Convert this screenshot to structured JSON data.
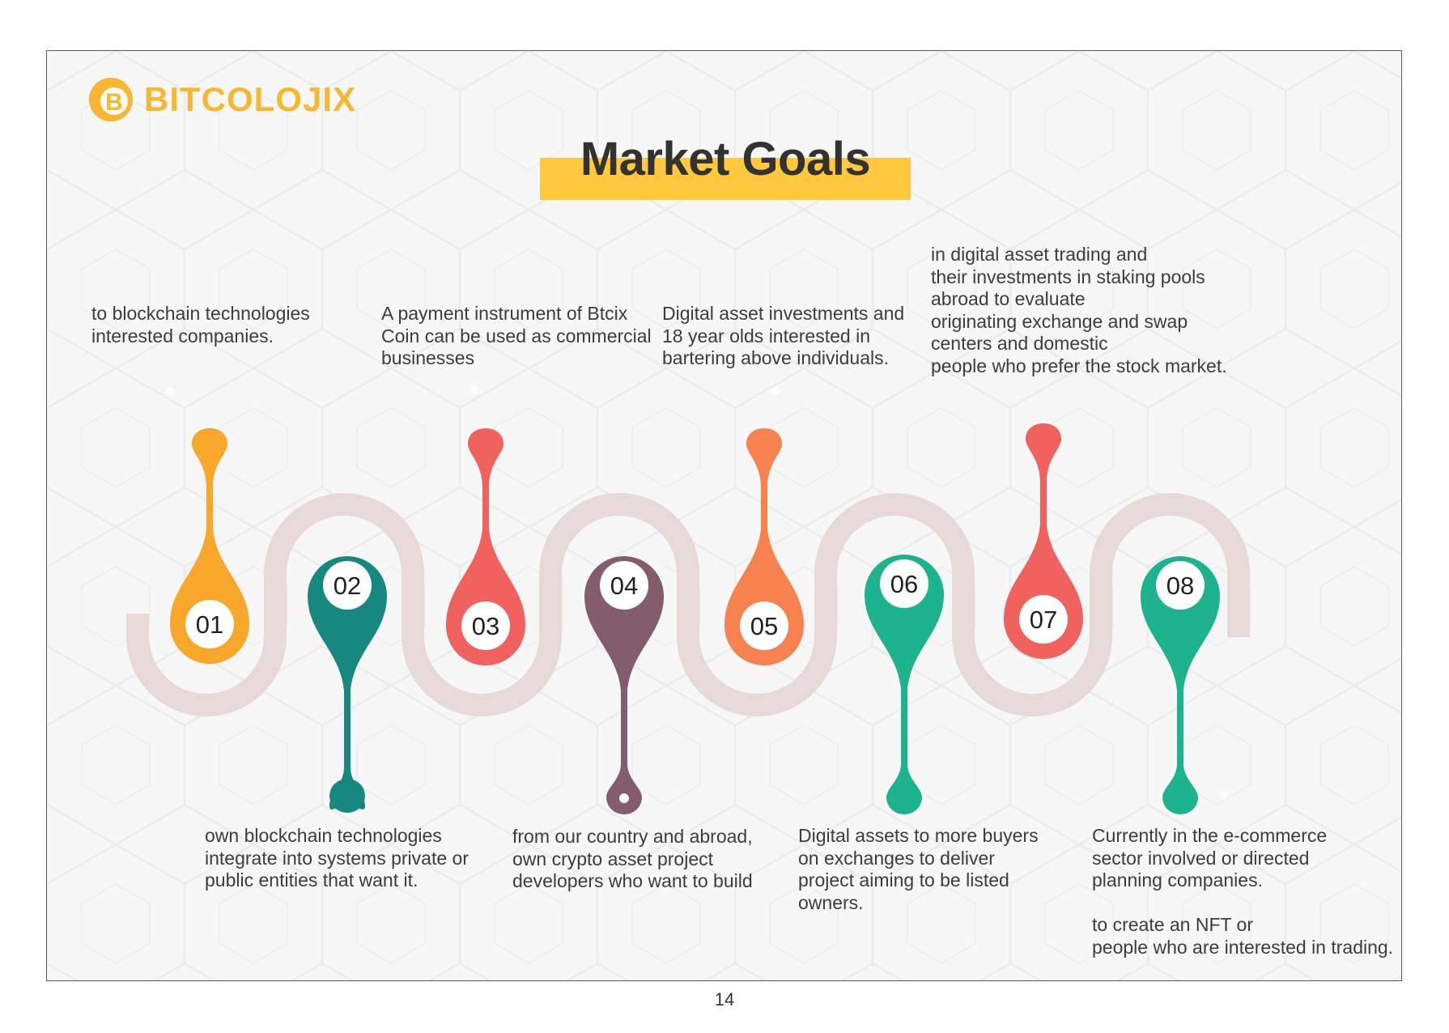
{
  "brand": {
    "name": "BITCOLOJIX",
    "logo_letter": "B",
    "color": "#f7b731"
  },
  "title": "Market Goals",
  "colors": {
    "title_highlight": "#ffc83d",
    "road": "#e6d9d8"
  },
  "goals": [
    {
      "number": "01",
      "color": "#f9a72b",
      "text": "to blockchain technologies\ninterested companies."
    },
    {
      "number": "02",
      "color": "#168880",
      "text": "own blockchain technologies\nintegrate into systems private or\npublic entities that want it."
    },
    {
      "number": "03",
      "color": "#f0625e",
      "text": "A payment instrument of Btcix\nCoin can be used as commercial\nbusinesses"
    },
    {
      "number": "04",
      "color": "#835c6e",
      "text": "from our country and abroad,\nown crypto asset project\ndevelopers who want to build"
    },
    {
      "number": "05",
      "color": "#f7824f",
      "text": "Digital asset investments and\n18 year olds interested in\nbartering above individuals."
    },
    {
      "number": "06",
      "color": "#1db38e",
      "text": "Digital assets to more buyers\non exchanges to deliver\nproject aiming to be listed\nowners."
    },
    {
      "number": "07",
      "color": "#f0625e",
      "text": "in digital asset trading and\ntheir investments in staking pools\nabroad to evaluate\noriginating exchange and swap\ncenters and domestic\npeople who prefer the stock market."
    },
    {
      "number": "08",
      "color": "#1db38e",
      "text": "Currently in the e-commerce\nsector involved or directed\nplanning companies.\n\nto create an NFT or\npeople who are interested in trading."
    }
  ],
  "page_number": "14"
}
